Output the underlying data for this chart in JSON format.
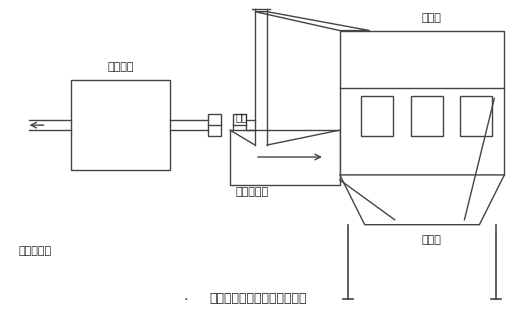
{
  "title": "自洁式空气过滤器厂房内吸气",
  "title_fontsize": 9,
  "line_color": "#444444",
  "text_color": "#222222",
  "labels": {
    "compressor_group": "空压机组",
    "factory": "空压机厂房",
    "filter": "过滤器",
    "window": "窗户",
    "duct": "新增吸风道",
    "nonwoven": "无纺布"
  },
  "figsize": [
    5.16,
    3.14
  ],
  "dpi": 100
}
